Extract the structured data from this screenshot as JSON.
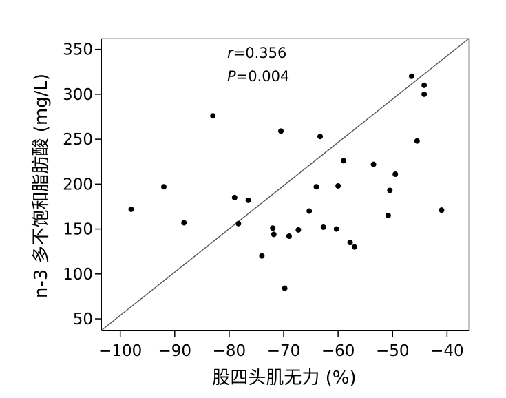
{
  "chart_data": {
    "type": "scatter",
    "xlabel": "股四头肌无力 (%)",
    "ylabel": "n-3 多不饱和脂肪酸 (mg/L)",
    "xlim": [
      -103.5,
      -36
    ],
    "ylim": [
      37,
      362
    ],
    "x_ticks": [
      -100,
      -90,
      -80,
      -70,
      -60,
      -50,
      -40
    ],
    "x_tick_labels": [
      "−100",
      "−90",
      "−80",
      "−70",
      "−60",
      "−50",
      "−40"
    ],
    "y_ticks": [
      50,
      100,
      150,
      200,
      250,
      300,
      350
    ],
    "y_tick_labels": [
      "50",
      "100",
      "150",
      "200",
      "250",
      "300",
      "350"
    ],
    "annotation": {
      "r_symbol": "r",
      "r_value": "=0.356",
      "p_symbol": "P",
      "p_value": "=0.004"
    },
    "regression_line": {
      "x": [
        -103.5,
        -36
      ],
      "y": [
        37,
        362
      ]
    },
    "grid": false,
    "points": [
      {
        "x": -98,
        "y": 172
      },
      {
        "x": -92,
        "y": 197
      },
      {
        "x": -88.3,
        "y": 157
      },
      {
        "x": -83,
        "y": 276
      },
      {
        "x": -79,
        "y": 185
      },
      {
        "x": -78.3,
        "y": 156
      },
      {
        "x": -76.5,
        "y": 182
      },
      {
        "x": -74,
        "y": 120
      },
      {
        "x": -72,
        "y": 151
      },
      {
        "x": -71.8,
        "y": 144
      },
      {
        "x": -70.5,
        "y": 259
      },
      {
        "x": -69.8,
        "y": 84
      },
      {
        "x": -69,
        "y": 142
      },
      {
        "x": -67.3,
        "y": 149
      },
      {
        "x": -65.3,
        "y": 170
      },
      {
        "x": -64,
        "y": 197
      },
      {
        "x": -63.3,
        "y": 253
      },
      {
        "x": -62.7,
        "y": 152
      },
      {
        "x": -60.3,
        "y": 150
      },
      {
        "x": -60,
        "y": 198
      },
      {
        "x": -59,
        "y": 226
      },
      {
        "x": -57.8,
        "y": 135
      },
      {
        "x": -57,
        "y": 130
      },
      {
        "x": -53.5,
        "y": 222
      },
      {
        "x": -50.8,
        "y": 165
      },
      {
        "x": -50.5,
        "y": 193
      },
      {
        "x": -49.5,
        "y": 211
      },
      {
        "x": -46.5,
        "y": 320
      },
      {
        "x": -45.5,
        "y": 248
      },
      {
        "x": -44.2,
        "y": 310
      },
      {
        "x": -44.2,
        "y": 300
      },
      {
        "x": -41,
        "y": 171
      }
    ]
  }
}
